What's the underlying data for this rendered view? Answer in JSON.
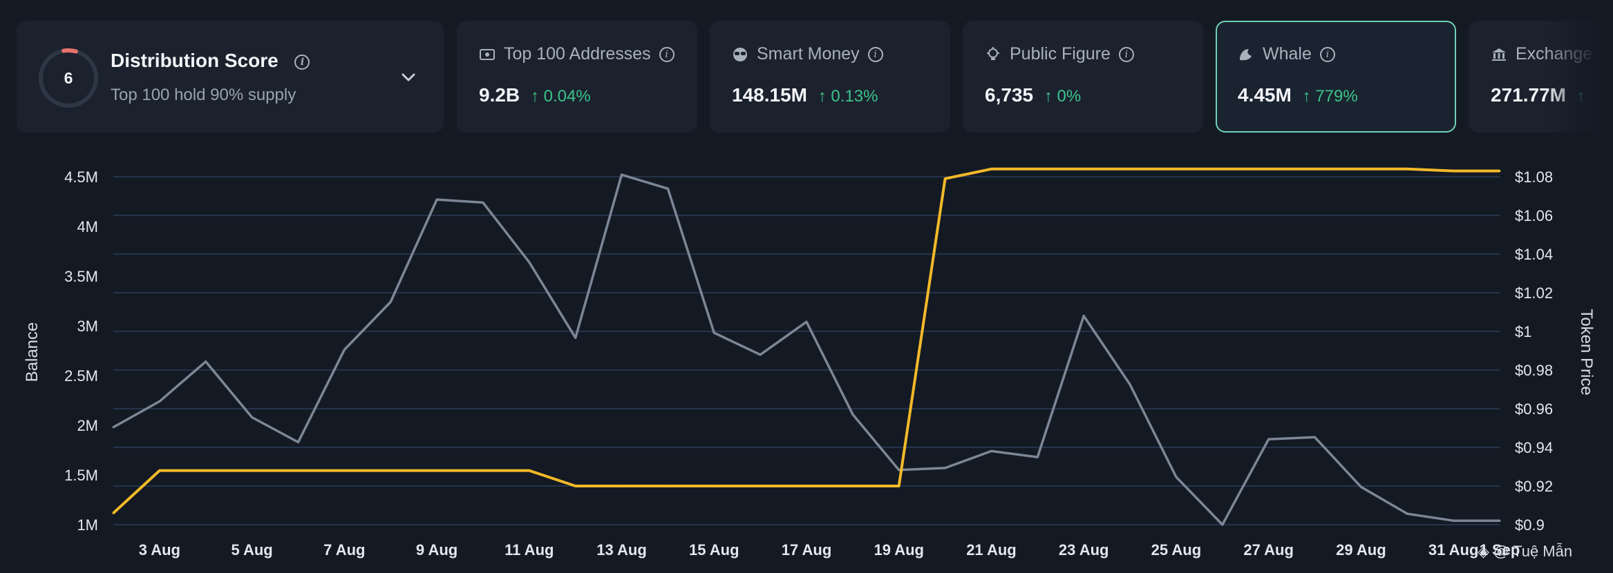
{
  "header": {
    "distribution": {
      "score": "6",
      "title": "Distribution Score",
      "subtitle": "Top 100 hold 90% supply",
      "ring_color": "#e8736b"
    },
    "metrics": [
      {
        "label": "Top 100 Addresses",
        "value": "9.2B",
        "change": "0.04%",
        "icon": "cash-icon"
      },
      {
        "label": "Smart Money",
        "value": "148.15M",
        "change": "0.13%",
        "icon": "sunglasses-icon"
      },
      {
        "label": "Public Figure",
        "value": "6,735",
        "change": "0%",
        "icon": "lightbulb-icon"
      },
      {
        "label": "Whale",
        "value": "4.45M",
        "change": "779%",
        "icon": "whale-icon",
        "active": true
      },
      {
        "label": "Exchange",
        "value": "271.77M",
        "change": "",
        "icon": "bank-icon"
      }
    ]
  },
  "chart_data": {
    "type": "line",
    "ylabel": "Balance",
    "y2label": "Token Price",
    "x": [
      "2 Aug",
      "3 Aug",
      "4 Aug",
      "5 Aug",
      "6 Aug",
      "7 Aug",
      "8 Aug",
      "9 Aug",
      "10 Aug",
      "11 Aug",
      "12 Aug",
      "13 Aug",
      "14 Aug",
      "15 Aug",
      "16 Aug",
      "17 Aug",
      "18 Aug",
      "19 Aug",
      "20 Aug",
      "21 Aug",
      "22 Aug",
      "23 Aug",
      "24 Aug",
      "25 Aug",
      "26 Aug",
      "27 Aug",
      "28 Aug",
      "29 Aug",
      "30 Aug",
      "31 Aug",
      "1 Sep"
    ],
    "x_tick_labels": [
      "3 Aug",
      "5 Aug",
      "7 Aug",
      "9 Aug",
      "11 Aug",
      "13 Aug",
      "15 Aug",
      "17 Aug",
      "19 Aug",
      "21 Aug",
      "23 Aug",
      "25 Aug",
      "27 Aug",
      "29 Aug",
      "31 Aug",
      "1 Sep"
    ],
    "series": [
      {
        "name": "Balance",
        "axis": "left",
        "color": "#7c8796",
        "values": [
          1.98,
          2.24,
          2.64,
          2.08,
          1.83,
          2.76,
          3.24,
          4.27,
          4.24,
          3.64,
          2.88,
          4.52,
          4.38,
          2.93,
          2.71,
          3.04,
          2.11,
          1.55,
          1.57,
          1.74,
          1.68,
          3.1,
          2.41,
          1.48,
          1.0,
          1.86,
          1.88,
          1.38,
          1.11,
          1.04,
          1.04
        ]
      },
      {
        "name": "Token Price",
        "axis": "right",
        "color": "#f2b929",
        "values": [
          0.906,
          0.928,
          0.928,
          0.928,
          0.928,
          0.928,
          0.928,
          0.928,
          0.928,
          0.928,
          0.92,
          0.92,
          0.92,
          0.92,
          0.92,
          0.92,
          0.92,
          0.92,
          1.079,
          1.084,
          1.084,
          1.084,
          1.084,
          1.084,
          1.084,
          1.084,
          1.084,
          1.084,
          1.084,
          1.083,
          1.083
        ]
      }
    ],
    "yticks": [
      "1M",
      "1.5M",
      "2M",
      "2.5M",
      "3M",
      "3.5M",
      "4M",
      "4.5M"
    ],
    "ytick_values": [
      1.0,
      1.5,
      2.0,
      2.5,
      3.0,
      3.5,
      4.0,
      4.5
    ],
    "ylim": [
      1.0,
      4.5
    ],
    "y2ticks": [
      "$0.9",
      "$0.92",
      "$0.94",
      "$0.96",
      "$0.98",
      "$1",
      "$1.02",
      "$1.04",
      "$1.06",
      "$1.08"
    ],
    "y2tick_values": [
      0.9,
      0.92,
      0.94,
      0.96,
      0.98,
      1.0,
      1.02,
      1.04,
      1.06,
      1.08
    ],
    "y2lim": [
      0.9,
      1.08
    ],
    "grid": true
  },
  "watermark": "@ Tuệ Mẫn"
}
